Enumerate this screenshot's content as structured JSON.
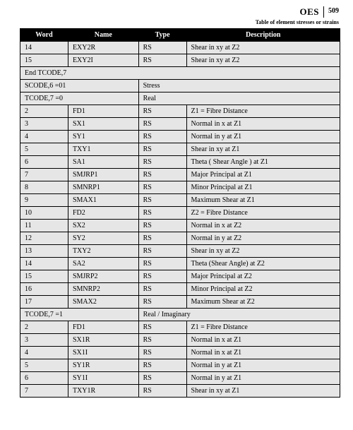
{
  "header": {
    "brand": "OES",
    "page_number": "509",
    "subtitle": "Table of element stresses or strains"
  },
  "columns": {
    "word": "Word",
    "name": "Name",
    "type": "Type",
    "description": "Description"
  },
  "widths": {
    "word": "15%",
    "name": "22%",
    "type": "15%",
    "desc": "48%"
  },
  "colors": {
    "header_bg": "#000000",
    "header_fg": "#ffffff",
    "row_bg": "#e6e6e6",
    "border": "#000000",
    "page_bg": "#ffffff"
  },
  "font": {
    "family": "Georgia, 'Times New Roman', serif",
    "cell_size_pt": 10,
    "brand_size_pt": 13,
    "subtitle_size_pt": 8
  },
  "rows": [
    {
      "kind": "data",
      "word": "14",
      "name": "EXY2R",
      "type": "RS",
      "desc": "Shear in xy at Z2"
    },
    {
      "kind": "data",
      "word": "15",
      "name": "EXY2I",
      "type": "RS",
      "desc": "Shear in xy at Z2"
    },
    {
      "kind": "span",
      "span": 4,
      "text": "End TCODE,7"
    },
    {
      "kind": "section",
      "left": "SCODE,6 =01",
      "right": "Stress"
    },
    {
      "kind": "section",
      "left": "TCODE,7 =0",
      "right": "Real"
    },
    {
      "kind": "data",
      "word": "2",
      "name": "FD1",
      "type": "RS",
      "desc": "Z1 = Fibre Distance"
    },
    {
      "kind": "data",
      "word": "3",
      "name": "SX1",
      "type": "RS",
      "desc": "Normal in x at Z1"
    },
    {
      "kind": "data",
      "word": "4",
      "name": "SY1",
      "type": "RS",
      "desc": "Normal in y at Z1"
    },
    {
      "kind": "data",
      "word": "5",
      "name": "TXY1",
      "type": "RS",
      "desc": "Shear in xy at Z1"
    },
    {
      "kind": "data",
      "word": "6",
      "name": "SA1",
      "type": "RS",
      "desc": "Theta ( Shear Angle ) at Z1"
    },
    {
      "kind": "data",
      "word": "7",
      "name": "SMJRP1",
      "type": "RS",
      "desc": "Major Principal at Z1"
    },
    {
      "kind": "data",
      "word": "8",
      "name": "SMNRP1",
      "type": "RS",
      "desc": "Minor Principal at Z1"
    },
    {
      "kind": "data",
      "word": "9",
      "name": "SMAX1",
      "type": "RS",
      "desc": "Maximum Shear at Z1"
    },
    {
      "kind": "data",
      "word": "10",
      "name": "FD2",
      "type": "RS",
      "desc": "Z2 = Fibre Distance"
    },
    {
      "kind": "data",
      "word": "11",
      "name": "SX2",
      "type": "RS",
      "desc": "Normal in x at Z2"
    },
    {
      "kind": "data",
      "word": "12",
      "name": "SY2",
      "type": "RS",
      "desc": "Normal in y at Z2"
    },
    {
      "kind": "data",
      "word": "13",
      "name": "TXY2",
      "type": "RS",
      "desc": "Shear in xy at Z2"
    },
    {
      "kind": "data",
      "word": "14",
      "name": "SA2",
      "type": "RS",
      "desc": "Theta (Shear Angle) at Z2"
    },
    {
      "kind": "data",
      "word": "15",
      "name": "SMJRP2",
      "type": "RS",
      "desc": "Major Principal at Z2"
    },
    {
      "kind": "data",
      "word": "16",
      "name": "SMNRP2",
      "type": "RS",
      "desc": "Minor Principal at Z2"
    },
    {
      "kind": "data",
      "word": "17",
      "name": "SMAX2",
      "type": "RS",
      "desc": "Maximum Shear at Z2"
    },
    {
      "kind": "section",
      "left": "TCODE,7 =1",
      "right": "Real / Imaginary"
    },
    {
      "kind": "data",
      "word": "2",
      "name": "FD1",
      "type": "RS",
      "desc": "Z1 = Fibre Distance"
    },
    {
      "kind": "data",
      "word": "3",
      "name": "SX1R",
      "type": "RS",
      "desc": "Normal in x at Z1"
    },
    {
      "kind": "data",
      "word": "4",
      "name": "SX1I",
      "type": "RS",
      "desc": "Normal in x at Z1"
    },
    {
      "kind": "data",
      "word": "5",
      "name": "SY1R",
      "type": "RS",
      "desc": "Normal in y at Z1"
    },
    {
      "kind": "data",
      "word": "6",
      "name": "SY1I",
      "type": "RS",
      "desc": "Normal in y at Z1"
    },
    {
      "kind": "data",
      "word": "7",
      "name": "TXY1R",
      "type": "RS",
      "desc": "Shear in xy at Z1"
    }
  ]
}
